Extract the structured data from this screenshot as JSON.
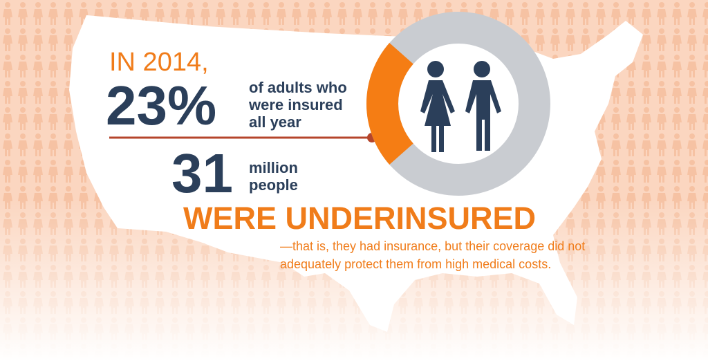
{
  "intro": "IN 2014,",
  "percent": {
    "value": 23,
    "label": "23%"
  },
  "percent_description": [
    "of adults who",
    "were insured",
    "all year"
  ],
  "count": "31",
  "count_description": [
    "million",
    "people"
  ],
  "headline": "WERE UNDERINSURED",
  "note": [
    "—that is, they had insurance, but their coverage did not",
    "adequately protect them from high medical costs."
  ]
}
